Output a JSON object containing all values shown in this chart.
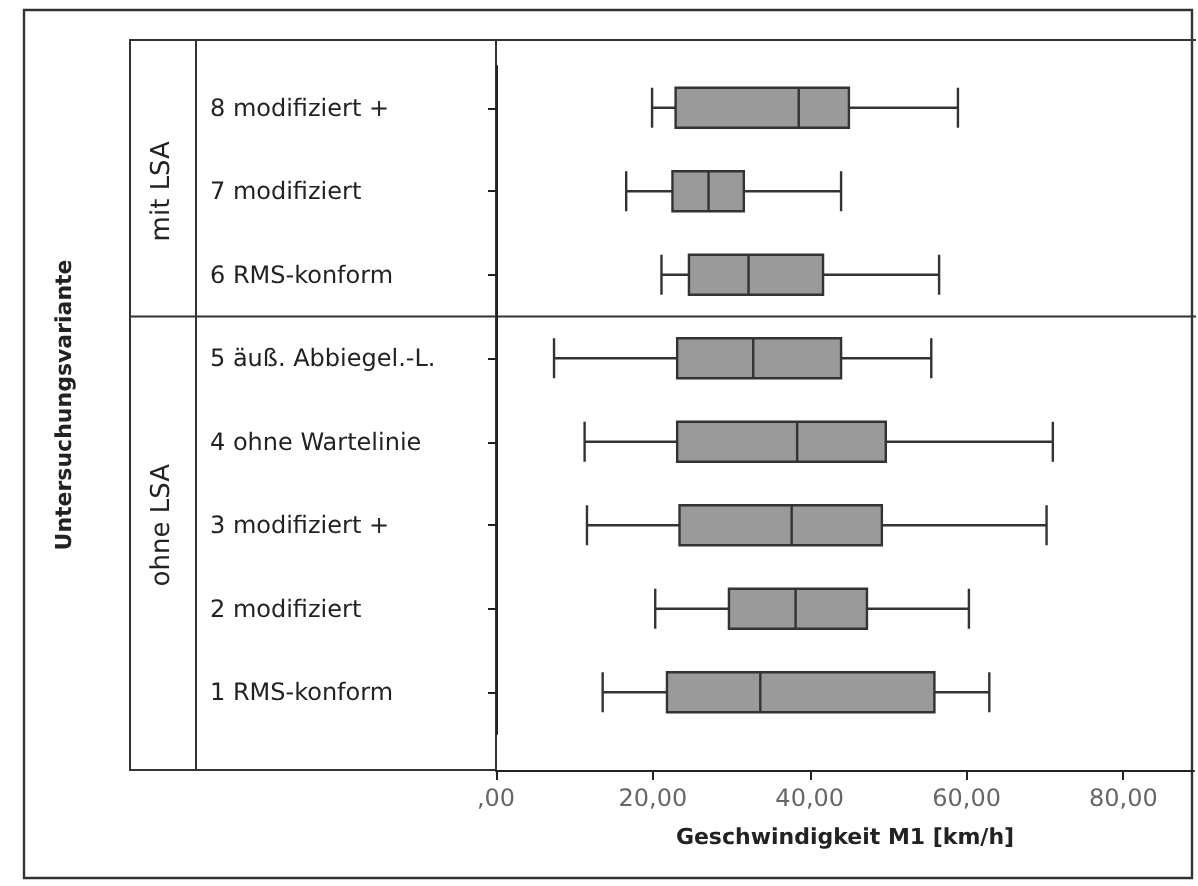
{
  "chart_data": {
    "type": "box",
    "orientation": "horizontal",
    "categories": [
      "8 modifiziert +",
      "7 modifiziert",
      "6 RMS-konform",
      "5 äuß. Abbiegel.-L.",
      "4 ohne Wartelinie",
      "3 modifiziert +",
      "2 modifiziert",
      "1 RMS-konform"
    ],
    "boxes": [
      {
        "low": 19.9,
        "q1": 22.9,
        "median": 38.6,
        "q3": 45.0,
        "high": 58.9
      },
      {
        "low": 16.6,
        "q1": 22.5,
        "median": 27.1,
        "q3": 31.6,
        "high": 44.0
      },
      {
        "low": 21.1,
        "q1": 24.6,
        "median": 32.2,
        "q3": 41.7,
        "high": 56.5
      },
      {
        "low": 7.4,
        "q1": 23.1,
        "median": 32.8,
        "q3": 44.0,
        "high": 55.5
      },
      {
        "low": 11.3,
        "q1": 23.1,
        "median": 38.4,
        "q3": 49.7,
        "high": 71.0
      },
      {
        "low": 11.6,
        "q1": 23.4,
        "median": 37.7,
        "q3": 49.2,
        "high": 70.2
      },
      {
        "low": 20.3,
        "q1": 29.7,
        "median": 38.2,
        "q3": 47.3,
        "high": 60.3
      },
      {
        "low": 13.6,
        "q1": 21.8,
        "median": 33.7,
        "q3": 55.9,
        "high": 62.9
      }
    ],
    "color": "#9a9a9a",
    "xlabel": "Geschwindigkeit M1 [km/h]",
    "xlim": [
      0,
      89
    ],
    "xticks": [
      {
        "value": 0,
        "label": ",00"
      },
      {
        "value": 20,
        "label": "20,00"
      },
      {
        "value": 40,
        "label": "40,00"
      },
      {
        "value": 60,
        "label": "60,00"
      },
      {
        "value": 80,
        "label": "80,00"
      }
    ],
    "annotations": [
      "Untersuchungsvariante",
      "mit LSA",
      "ohne LSA"
    ],
    "grid": false
  }
}
